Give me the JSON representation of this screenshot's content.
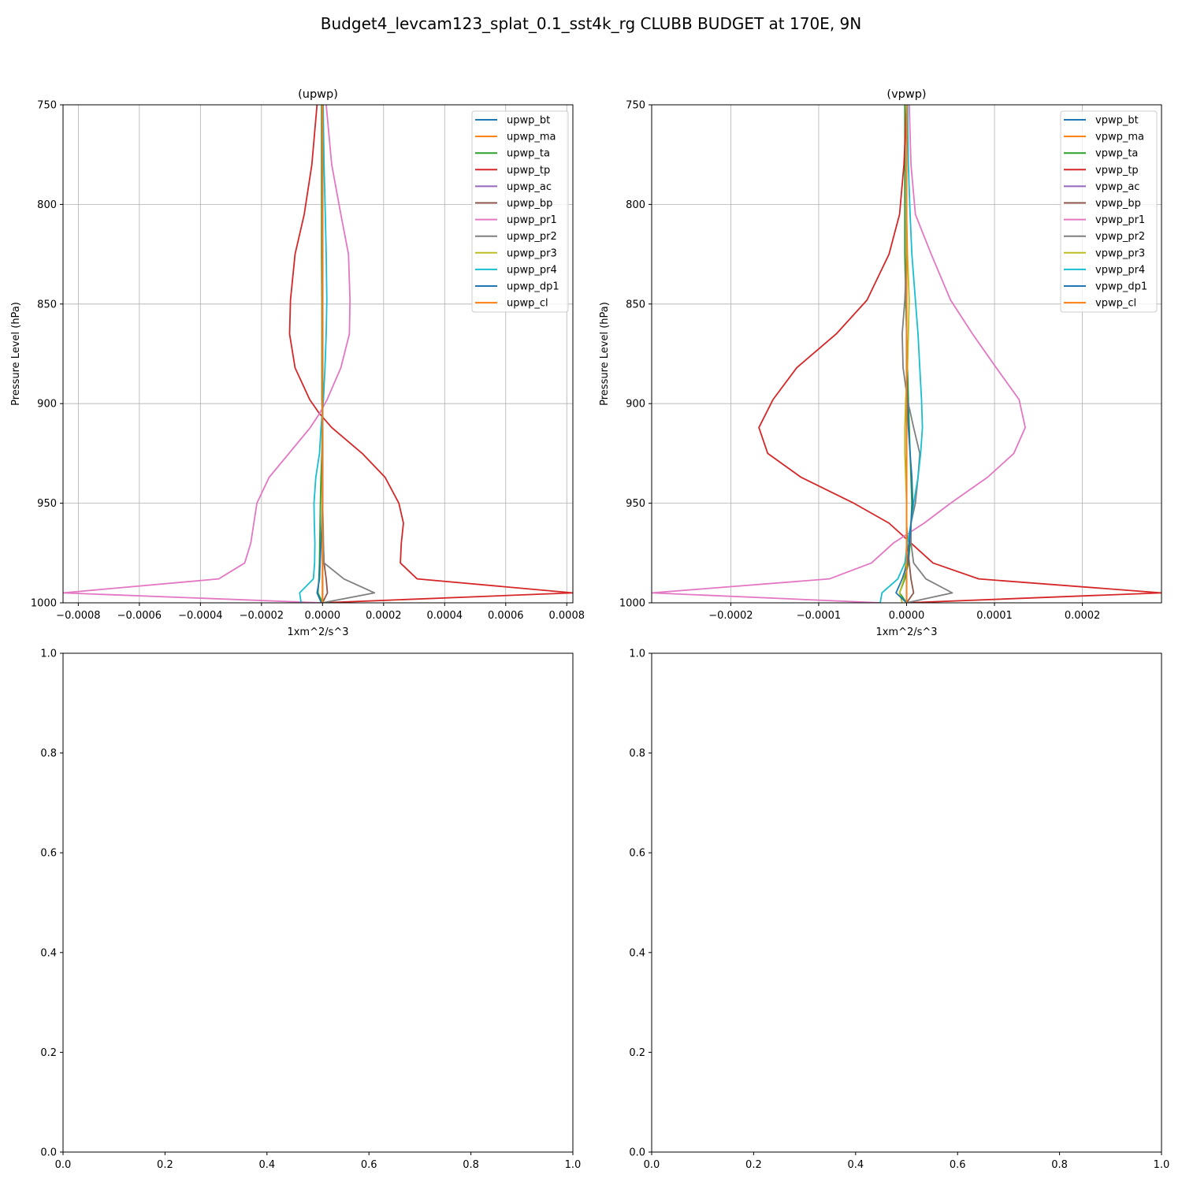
{
  "figure": {
    "title": "Budget4_levcam123_splat_0.1_sst4k_rg CLUBB BUDGET at 170E, 9N"
  },
  "colors": [
    "#1f77b4",
    "#ff7f0e",
    "#2ca02c",
    "#d62728",
    "#9467bd",
    "#8c564b",
    "#e377c2",
    "#7f7f7f",
    "#bcbd22",
    "#17becf",
    "#1f77b4",
    "#ff7f0e"
  ],
  "chart_data": [
    {
      "type": "line",
      "title": "(upwp)",
      "xlabel": "1xm^2/s^3",
      "ylabel": "Pressure Level (hPa)",
      "xlim": [
        -0.00085,
        0.00082
      ],
      "ylim": [
        1000,
        750
      ],
      "xticks": [
        -0.0008,
        -0.0006,
        -0.0004,
        -0.0002,
        0.0,
        0.0002,
        0.0004,
        0.0006,
        0.0008
      ],
      "xtick_labels": [
        "−0.0008",
        "−0.0006",
        "−0.0004",
        "−0.0002",
        "0.0000",
        "0.0002",
        "0.0004",
        "0.0006",
        "0.0008"
      ],
      "yticks": [
        750,
        800,
        850,
        900,
        950,
        1000
      ],
      "ytick_labels": [
        "750",
        "800",
        "850",
        "900",
        "950",
        "1000"
      ],
      "grid": true,
      "legend_position": "upper right",
      "levels": [
        750,
        780,
        805,
        825,
        848,
        865,
        882,
        898,
        905,
        912,
        925,
        937,
        950,
        960,
        970,
        980,
        988,
        995,
        1000
      ],
      "series": [
        {
          "name": "upwp_bt",
          "values": [
            0,
            0,
            0,
            0,
            0,
            0,
            0,
            0,
            0,
            0,
            0,
            0,
            0,
            0,
            0,
            0,
            0,
            0,
            0
          ]
        },
        {
          "name": "upwp_ma",
          "values": [
            0,
            0,
            0,
            0,
            0,
            0,
            0,
            0,
            0,
            0,
            0,
            0,
            0,
            0,
            0,
            0,
            0,
            0,
            0
          ]
        },
        {
          "name": "upwp_ta",
          "values": [
            -3e-06,
            -3e-06,
            -3e-06,
            -3e-06,
            -2e-06,
            -2e-06,
            -2e-06,
            -2e-06,
            -1e-06,
            -1e-06,
            -2e-06,
            -5e-06,
            -7e-06,
            -8e-06,
            -9e-06,
            -1e-05,
            -1.2e-05,
            -1.5e-05,
            0
          ]
        },
        {
          "name": "upwp_tp",
          "values": [
            -1.8e-05,
            -3.5e-05,
            -6e-05,
            -9e-05,
            -0.000105,
            -0.000108,
            -9e-05,
            -4.2e-05,
            -1e-05,
            3e-05,
            0.00013,
            0.000205,
            0.00025,
            0.000265,
            0.000258,
            0.000255,
            0.00031,
            0.00082,
            0
          ]
        },
        {
          "name": "upwp_ac",
          "values": [
            0,
            0,
            0,
            0,
            0,
            0,
            0,
            0,
            0,
            0,
            0,
            0,
            0,
            0,
            0,
            0,
            0,
            0,
            0
          ]
        },
        {
          "name": "upwp_bp",
          "values": [
            0,
            0,
            0,
            0,
            0,
            0,
            0,
            0,
            0,
            0,
            0,
            0,
            0,
            -1e-06,
            2e-06,
            5e-06,
            1.2e-05,
            1.6e-05,
            0
          ]
        },
        {
          "name": "upwp_pr1",
          "values": [
            1.2e-05,
            3e-05,
            6e-05,
            8.5e-05,
            9e-05,
            8.8e-05,
            6e-05,
            1.5e-05,
            -1e-05,
            -4e-05,
            -0.00011,
            -0.000175,
            -0.000215,
            -0.000225,
            -0.000235,
            -0.000255,
            -0.00034,
            -0.00085,
            -5e-06
          ]
        },
        {
          "name": "upwp_pr2",
          "values": [
            0,
            0,
            0,
            0,
            0,
            0,
            0,
            0,
            0,
            0,
            0,
            0,
            0,
            2e-06,
            3e-06,
            5e-06,
            7e-05,
            0.00017,
            0
          ]
        },
        {
          "name": "upwp_pr3",
          "values": [
            0,
            0,
            0,
            0,
            0,
            0,
            0,
            0,
            0,
            0,
            0,
            0,
            0,
            0,
            0,
            0,
            0,
            0,
            0
          ]
        },
        {
          "name": "upwp_pr4",
          "values": [
            2e-06,
            5e-06,
            9e-06,
            1.2e-05,
            1.4e-05,
            1.2e-05,
            8e-06,
            3e-06,
            -1e-06,
            -5e-06,
            -1e-05,
            -2.2e-05,
            -2.8e-05,
            -2.7e-05,
            -2.5e-05,
            -2.6e-05,
            -3e-05,
            -7.5e-05,
            -7e-05
          ]
        },
        {
          "name": "upwp_dp1",
          "values": [
            0,
            0,
            0,
            0,
            0,
            0,
            0,
            0,
            0,
            0,
            0,
            0,
            0,
            -2e-06,
            -5e-06,
            -8e-06,
            -1e-05,
            -1.8e-05,
            -4e-06
          ]
        },
        {
          "name": "upwp_cl",
          "values": [
            0,
            0,
            0,
            0,
            0,
            0,
            0,
            0,
            0,
            0,
            0,
            0,
            0,
            0,
            0,
            0,
            0,
            0,
            0
          ]
        }
      ]
    },
    {
      "type": "line",
      "title": "(vpwp)",
      "xlabel": "1xm^2/s^3",
      "ylabel": "Pressure Level (hPa)",
      "xlim": [
        -0.00029,
        0.00029
      ],
      "ylim": [
        1000,
        750
      ],
      "xticks": [
        -0.0002,
        -0.0001,
        0.0,
        0.0001,
        0.0002
      ],
      "xtick_labels": [
        "−0.0002",
        "−0.0001",
        "0.0000",
        "0.0001",
        "0.0002"
      ],
      "yticks": [
        750,
        800,
        850,
        900,
        950,
        1000
      ],
      "ytick_labels": [
        "750",
        "800",
        "850",
        "900",
        "950",
        "1000"
      ],
      "grid": true,
      "legend_position": "upper right",
      "levels": [
        750,
        780,
        805,
        825,
        848,
        865,
        882,
        898,
        912,
        925,
        937,
        950,
        960,
        970,
        980,
        988,
        995,
        1000
      ],
      "series": [
        {
          "name": "vpwp_bt",
          "values": [
            0,
            0,
            0,
            0,
            0,
            0,
            0,
            0,
            0,
            0,
            0,
            0,
            0,
            0,
            0,
            0,
            0,
            0
          ]
        },
        {
          "name": "vpwp_ma",
          "values": [
            0,
            0,
            0,
            0,
            0,
            0,
            0,
            0,
            0,
            0,
            0,
            0,
            0,
            0,
            0,
            0,
            0,
            0
          ]
        },
        {
          "name": "vpwp_ta",
          "values": [
            -2e-06,
            -2e-06,
            -2e-06,
            -2e-06,
            -1e-06,
            0,
            1e-06,
            2e-06,
            3e-06,
            4e-06,
            5e-06,
            6e-06,
            5e-06,
            4e-06,
            2e-06,
            -2e-06,
            -8e-06,
            0
          ]
        },
        {
          "name": "vpwp_tp",
          "values": [
            0,
            -3e-06,
            -8e-06,
            -2e-05,
            -4.5e-05,
            -8e-05,
            -0.000125,
            -0.000152,
            -0.000168,
            -0.000158,
            -0.00012,
            -6e-05,
            -2e-05,
            5e-06,
            3e-05,
            8.2e-05,
            0.00029,
            0
          ]
        },
        {
          "name": "vpwp_ac",
          "values": [
            0,
            0,
            0,
            0,
            0,
            0,
            0,
            0,
            0,
            0,
            0,
            0,
            0,
            0,
            0,
            0,
            0,
            0
          ]
        },
        {
          "name": "vpwp_bp",
          "values": [
            0,
            0,
            0,
            0,
            0,
            0,
            0,
            0,
            0,
            0,
            0,
            0,
            0,
            1e-06,
            3e-06,
            5e-06,
            8e-06,
            0
          ]
        },
        {
          "name": "vpwp_pr1",
          "values": [
            3e-06,
            5e-06,
            1e-05,
            2.8e-05,
            5e-05,
            7.5e-05,
            0.000102,
            0.000128,
            0.000135,
            0.000122,
            9.2e-05,
            5e-05,
            2e-05,
            -1.5e-05,
            -4e-05,
            -8.8e-05,
            -0.00029,
            -3e-05
          ]
        },
        {
          "name": "vpwp_pr2",
          "values": [
            0,
            0,
            0,
            0,
            -2e-06,
            -5e-06,
            -4e-06,
            1e-06,
            8e-06,
            1.5e-05,
            1.3e-05,
            1e-05,
            5e-06,
            5e-06,
            8e-06,
            2.2e-05,
            5.2e-05,
            0
          ]
        },
        {
          "name": "vpwp_pr3",
          "values": [
            0,
            0,
            0,
            1e-06,
            3e-06,
            2e-06,
            1e-06,
            -1e-06,
            -2e-06,
            -2e-06,
            -1e-06,
            0,
            0,
            0,
            -1e-06,
            -3e-06,
            -8e-06,
            -5e-06
          ]
        },
        {
          "name": "vpwp_pr4",
          "values": [
            1e-06,
            2e-06,
            4e-06,
            6e-06,
            1e-05,
            1.3e-05,
            1.5e-05,
            1.7e-05,
            1.8e-05,
            1.6e-05,
            1.3e-05,
            8e-06,
            5e-06,
            1e-06,
            -2e-06,
            -1e-05,
            -2.8e-05,
            -3e-05
          ]
        },
        {
          "name": "vpwp_dp1",
          "values": [
            0,
            0,
            0,
            0,
            0,
            0,
            0,
            1e-06,
            2e-06,
            4e-06,
            6e-06,
            7e-06,
            5e-06,
            3e-06,
            1e-06,
            -5e-06,
            -1.2e-05,
            0
          ]
        },
        {
          "name": "vpwp_cl",
          "values": [
            0,
            0,
            0,
            0,
            0,
            0,
            0,
            0,
            0,
            0,
            0,
            0,
            0,
            0,
            0,
            0,
            0,
            0
          ]
        }
      ]
    },
    {
      "type": "line",
      "title": "",
      "xlim": [
        0,
        1
      ],
      "ylim": [
        0,
        1
      ],
      "xticks": [
        0,
        0.2,
        0.4,
        0.6,
        0.8,
        1.0
      ],
      "xtick_labels": [
        "0.0",
        "0.2",
        "0.4",
        "0.6",
        "0.8",
        "1.0"
      ],
      "yticks": [
        0,
        0.2,
        0.4,
        0.6,
        0.8,
        1.0
      ],
      "ytick_labels": [
        "0.0",
        "0.2",
        "0.4",
        "0.6",
        "0.8",
        "1.0"
      ],
      "grid": false,
      "series": []
    },
    {
      "type": "line",
      "title": "",
      "xlim": [
        0,
        1
      ],
      "ylim": [
        0,
        1
      ],
      "xticks": [
        0,
        0.2,
        0.4,
        0.6,
        0.8,
        1.0
      ],
      "xtick_labels": [
        "0.0",
        "0.2",
        "0.4",
        "0.6",
        "0.8",
        "1.0"
      ],
      "yticks": [
        0,
        0.2,
        0.4,
        0.6,
        0.8,
        1.0
      ],
      "ytick_labels": [
        "0.0",
        "0.2",
        "0.4",
        "0.6",
        "0.8",
        "1.0"
      ],
      "grid": false,
      "series": []
    }
  ]
}
